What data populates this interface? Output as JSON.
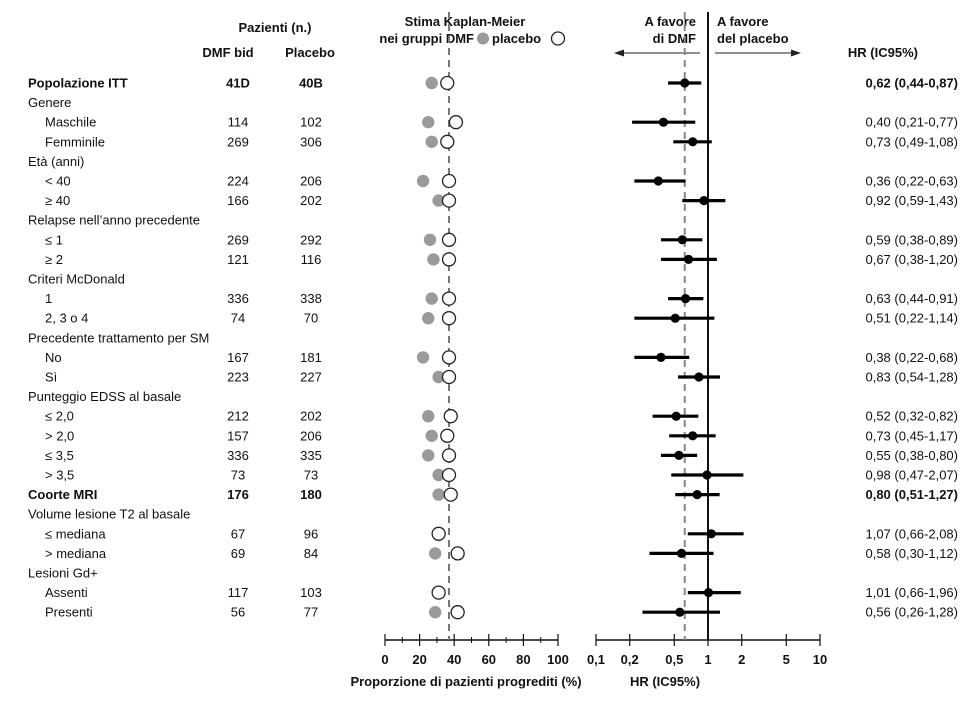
{
  "header": {
    "patients_title": "Pazienti (n.)",
    "col_dmf": "DMF bid",
    "col_placebo": "Placebo",
    "km_title": "Stima Kaplan-Meier",
    "km_subtitle_prefix": "nei gruppi DMF",
    "km_subtitle_placebo": "placebo",
    "favor_dmf_1": "A favore",
    "favor_dmf_2": "di DMF",
    "favor_placebo_1": "A favore",
    "favor_placebo_2": "del placebo",
    "hr_col_title": "HR (IC95%)"
  },
  "axes": {
    "km_xlabel": "Proporzione di pazienti progrediti (%)",
    "hr_xlabel": "HR (IC95%)",
    "km_ticks": [
      "0",
      "20",
      "40",
      "60",
      "80",
      "100"
    ],
    "hr_ticks": [
      "0,1",
      "0,2",
      "0,5",
      "1",
      "2",
      "5",
      "10"
    ]
  },
  "colors": {
    "dmf_marker": "#9a9a9a",
    "placebo_marker": "#ffffff",
    "reference_dashed": "#777777",
    "forest": "#000000"
  },
  "rows": [
    {
      "label": "Popolazione ITT",
      "type": "bold",
      "dmf": "41D",
      "placebo": "40B",
      "hr_text": "0,62 (0,44-0,87)"
    },
    {
      "label": "Genere",
      "type": "group"
    },
    {
      "label": "Maschile",
      "type": "sub",
      "dmf": "114",
      "placebo": "102",
      "hr_text": "0,40 (0,21-0,77)"
    },
    {
      "label": "Femminile",
      "type": "sub",
      "dmf": "269",
      "placebo": "306",
      "hr_text": "0,73 (0,49-1,08)"
    },
    {
      "label": "Età (anni)",
      "type": "group"
    },
    {
      "label": "< 40",
      "type": "sub",
      "dmf": "224",
      "placebo": "206",
      "hr_text": "0,36 (0,22-0,63)"
    },
    {
      "label": "≥ 40",
      "type": "sub",
      "dmf": "166",
      "placebo": "202",
      "hr_text": "0,92 (0,59-1,43)"
    },
    {
      "label": "Relapse nell’anno precedente",
      "type": "group"
    },
    {
      "label": "≤ 1",
      "type": "sub",
      "dmf": "269",
      "placebo": "292",
      "hr_text": "0,59 (0,38-0,89)"
    },
    {
      "label": "≥ 2",
      "type": "sub",
      "dmf": "121",
      "placebo": "116",
      "hr_text": "0,67 (0,38-1,20)"
    },
    {
      "label": "Criteri McDonald",
      "type": "group"
    },
    {
      "label": "1",
      "type": "sub",
      "dmf": "336",
      "placebo": "338",
      "hr_text": "0,63 (0,44-0,91)"
    },
    {
      "label": "2, 3 o 4",
      "type": "sub",
      "dmf": "74",
      "placebo": "70",
      "hr_text": "0,51 (0,22-1,14)"
    },
    {
      "label": "Precedente trattamento per SM",
      "type": "group"
    },
    {
      "label": "No",
      "type": "sub",
      "dmf": "167",
      "placebo": "181",
      "hr_text": "0,38 (0,22-0,68)"
    },
    {
      "label": "Sì",
      "type": "sub",
      "dmf": "223",
      "placebo": "227",
      "hr_text": "0,83 (0,54-1,28)"
    },
    {
      "label": "Punteggio EDSS al basale",
      "type": "group"
    },
    {
      "label": "≤ 2,0",
      "type": "sub",
      "dmf": "212",
      "placebo": "202",
      "hr_text": "0,52 (0,32-0,82)"
    },
    {
      "label": "> 2,0",
      "type": "sub",
      "dmf": "157",
      "placebo": "206",
      "hr_text": "0,73 (0,45-1,17)"
    },
    {
      "label": "≤ 3,5",
      "type": "sub",
      "dmf": "336",
      "placebo": "335",
      "hr_text": "0,55 (0,38-0,80)"
    },
    {
      "label": "> 3,5",
      "type": "sub",
      "dmf": "73",
      "placebo": "73",
      "hr_text": "0,98 (0,47-2,07)"
    },
    {
      "label": "Coorte MRI",
      "type": "bold",
      "dmf": "176",
      "placebo": "180",
      "hr_text": "0,80 (0,51-1,27)"
    },
    {
      "label": "Volume lesione T2 al basale",
      "type": "group"
    },
    {
      "label": "≤ mediana",
      "type": "sub",
      "dmf": "67",
      "placebo": "96",
      "hr_text": "1,07 (0,66-2,08)"
    },
    {
      "label": "> mediana",
      "type": "sub",
      "dmf": "69",
      "placebo": "84",
      "hr_text": "0,58 (0,30-1,12)"
    },
    {
      "label": "Lesioni Gd+",
      "type": "group"
    },
    {
      "label": "Assenti",
      "type": "sub",
      "dmf": "117",
      "placebo": "103",
      "hr_text": "1,01 (0,66-1,96)"
    },
    {
      "label": "Presenti",
      "type": "sub",
      "dmf": "56",
      "placebo": "77",
      "hr_text": "0,56 (0,26-1,28)"
    }
  ],
  "chart_data": [
    {
      "type": "scatter",
      "xlabel": "Proporzione di pazienti progrediti (%)",
      "xlim": [
        0,
        100
      ],
      "reference_line": 37,
      "series": [
        {
          "name": "DMF",
          "values": [
            27,
            25,
            27,
            22,
            31,
            26,
            28,
            27,
            25,
            22,
            31,
            25,
            27,
            25,
            31,
            31,
            31,
            29,
            31,
            29
          ]
        },
        {
          "name": "placebo",
          "values": [
            36,
            41,
            36,
            37,
            37,
            37,
            37,
            37,
            37,
            37,
            37,
            38,
            36,
            37,
            37,
            38,
            31,
            42,
            31,
            42
          ]
        }
      ]
    },
    {
      "type": "scatter",
      "xlabel": "HR (IC95%)",
      "xscale": "log",
      "xlim": [
        0.1,
        10
      ],
      "reference_line": 1,
      "dashed_line": 0.62,
      "hr": [
        0.62,
        0.4,
        0.73,
        0.36,
        0.92,
        0.59,
        0.67,
        0.63,
        0.51,
        0.38,
        0.83,
        0.52,
        0.73,
        0.55,
        0.98,
        0.8,
        1.07,
        0.58,
        1.01,
        0.56
      ],
      "ci_low": [
        0.44,
        0.21,
        0.49,
        0.22,
        0.59,
        0.38,
        0.38,
        0.44,
        0.22,
        0.22,
        0.54,
        0.32,
        0.45,
        0.38,
        0.47,
        0.51,
        0.66,
        0.3,
        0.66,
        0.26
      ],
      "ci_high": [
        0.87,
        0.77,
        1.08,
        0.63,
        1.43,
        0.89,
        1.2,
        0.91,
        1.14,
        0.68,
        1.28,
        0.82,
        1.17,
        0.8,
        2.07,
        1.27,
        2.08,
        1.12,
        1.96,
        1.28
      ]
    }
  ]
}
